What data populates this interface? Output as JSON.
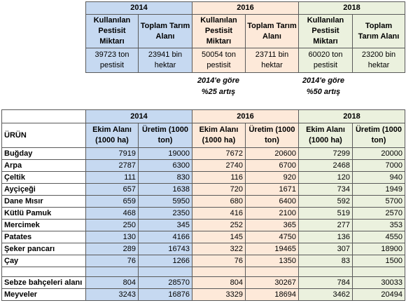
{
  "top_table": {
    "groups": [
      {
        "year": "2014",
        "headers": [
          "Kullanılan Pestisit Miktarı",
          "Toplam Tarım Alanı"
        ],
        "values": [
          "39723 ton pestisit",
          "23941 bin hektar"
        ]
      },
      {
        "year": "2016",
        "headers": [
          "Kullanılan Pestisit Miktarı",
          "Toplam Tarım Alanı"
        ],
        "values": [
          "50054 ton pestisit",
          "23711 bin hektar"
        ]
      },
      {
        "year": "2018",
        "headers": [
          "Kullanılan Pestisit Miktarı",
          "Toplam Tarım Alanı"
        ],
        "values": [
          "60020 ton pestisit",
          "23200 bin hektar"
        ]
      }
    ]
  },
  "annotations": [
    {
      "line1": "2014'e göre",
      "line2": "%25 artış"
    },
    {
      "line1": "2014'e göre",
      "line2": "%50 artış"
    }
  ],
  "bottom_table": {
    "row_header": "ÜRÜN",
    "years": [
      "2014",
      "2016",
      "2018"
    ],
    "sub_headers": [
      "Ekim Alanı (1000 ha)",
      "Üretim (1000 ton)"
    ],
    "row_groups": [
      [
        {
          "name": "Buğday",
          "values": [
            7919,
            19000,
            7672,
            20600,
            7299,
            20000
          ]
        },
        {
          "name": "Arpa",
          "values": [
            2787,
            6300,
            2740,
            6700,
            2468,
            7000
          ]
        },
        {
          "name": "Çeltik",
          "values": [
            111,
            830,
            116,
            920,
            120,
            940
          ]
        },
        {
          "name": "Ayçiçeği",
          "values": [
            657,
            1638,
            720,
            1671,
            734,
            1949
          ]
        },
        {
          "name": "Dane Mısır",
          "values": [
            659,
            5950,
            680,
            6400,
            592,
            5700
          ]
        },
        {
          "name": "Kütlü Pamuk",
          "values": [
            468,
            2350,
            416,
            2100,
            519,
            2570
          ]
        },
        {
          "name": "Mercimek",
          "values": [
            250,
            345,
            252,
            365,
            277,
            353
          ]
        },
        {
          "name": "Patates",
          "values": [
            130,
            4166,
            145,
            4750,
            136,
            4550
          ]
        },
        {
          "name": "Şeker pancarı",
          "values": [
            289,
            16743,
            322,
            19465,
            307,
            18900
          ]
        },
        {
          "name": "Çay",
          "values": [
            76,
            1266,
            76,
            1350,
            83,
            1500
          ]
        }
      ],
      [
        {
          "name": "Sebze bahçeleri alanı",
          "values": [
            804,
            28570,
            804,
            30267,
            784,
            30033
          ]
        },
        {
          "name": "Meyveler",
          "values": [
            3243,
            16876,
            3329,
            18694,
            3462,
            20494
          ]
        }
      ]
    ]
  }
}
